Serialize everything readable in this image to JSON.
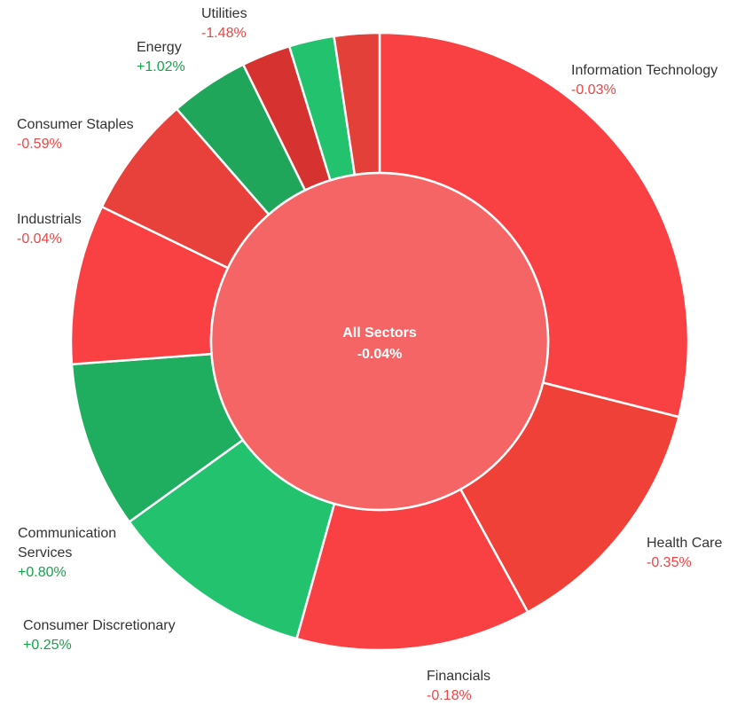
{
  "chart_data": {
    "type": "pie",
    "variant": "sunburst-donut",
    "center": {
      "label": "All Sectors",
      "change": "-0.04%",
      "color": "#f56565"
    },
    "sectors": [
      {
        "name": "Information Technology",
        "change": "-0.03%",
        "share": 29.4,
        "color": "#f94144",
        "label_lines": [
          "Information Technology"
        ]
      },
      {
        "name": "Health Care",
        "change": "-0.35%",
        "share": 13.3,
        "color": "#ef4137",
        "label_lines": [
          "Health Care"
        ]
      },
      {
        "name": "Financials",
        "change": "-0.18%",
        "share": 12.5,
        "color": "#f94144",
        "label_lines": [
          "Financials"
        ]
      },
      {
        "name": "Consumer Discretionary",
        "change": "+0.25%",
        "share": 10.9,
        "color": "#22c26f",
        "label_lines": [
          "Consumer Discretionary"
        ]
      },
      {
        "name": "Communication Services",
        "change": "+0.80%",
        "share": 8.9,
        "color": "#1fae5f",
        "label_lines": [
          "Communication",
          "Services"
        ]
      },
      {
        "name": "Industrials",
        "change": "-0.04%",
        "share": 8.5,
        "color": "#f94144",
        "label_lines": [
          "Industrials"
        ]
      },
      {
        "name": "Consumer Staples",
        "change": "-0.59%",
        "share": 6.5,
        "color": "#e8403a",
        "label_lines": [
          "Consumer Staples"
        ]
      },
      {
        "name": "Energy",
        "change": "+1.02%",
        "share": 4.2,
        "color": "#1fa65a",
        "label_lines": [
          "Energy"
        ]
      },
      {
        "name": "Utilities",
        "change": "-1.48%",
        "share": 2.6,
        "color": "#d63330",
        "label_lines": [
          "Utilities"
        ]
      },
      {
        "name": "",
        "change": "",
        "share": 2.4,
        "color": "#22c26f",
        "label_lines": []
      },
      {
        "name": "",
        "change": "",
        "share": 2.4,
        "color": "#e3403a",
        "label_lines": []
      }
    ],
    "colors": {
      "negative_text": "#ef4444",
      "positive_text": "#16a34a",
      "separator": "#ffffff"
    }
  }
}
